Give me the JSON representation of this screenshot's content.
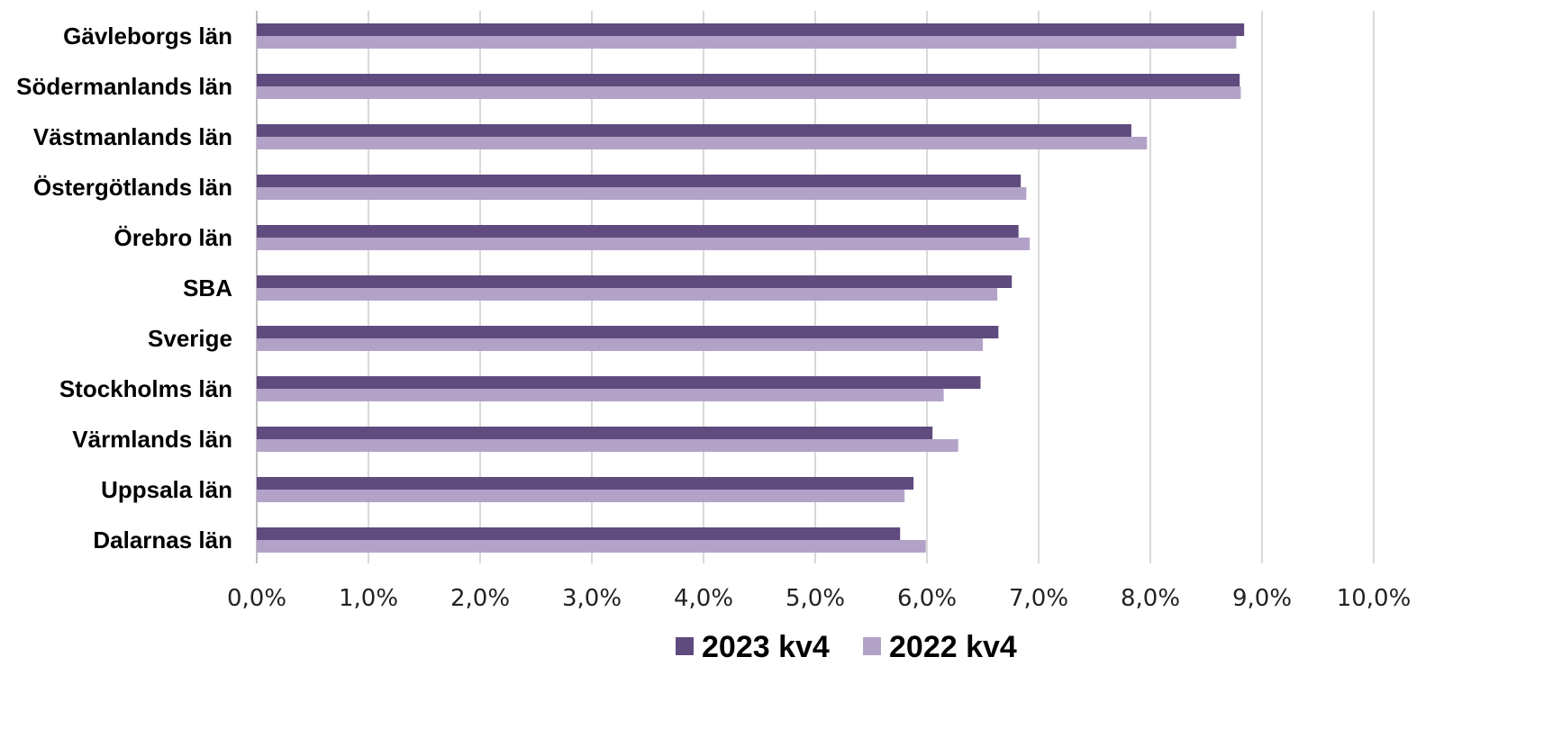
{
  "chart_data": {
    "type": "bar",
    "orientation": "horizontal",
    "categories": [
      "Gävleborgs län",
      "Södermanlands län",
      "Västmanlands län",
      "Östergötlands län",
      "Örebro län",
      "SBA",
      "Sverige",
      "Stockholms län",
      "Värmlands län",
      "Uppsala län",
      "Dalarnas län"
    ],
    "series": [
      {
        "name": "2023 kv4",
        "color": "#5f4b7e",
        "values": [
          8.84,
          8.8,
          7.83,
          6.84,
          6.82,
          6.76,
          6.64,
          6.48,
          6.05,
          5.88,
          5.76
        ]
      },
      {
        "name": "2022 kv4",
        "color": "#b2a2c7",
        "values": [
          8.77,
          8.81,
          7.97,
          6.89,
          6.92,
          6.63,
          6.5,
          6.15,
          6.28,
          5.8,
          5.99
        ]
      }
    ],
    "xlim": [
      0,
      10
    ],
    "xticks": [
      "0,0%",
      "1,0%",
      "2,0%",
      "3,0%",
      "4,0%",
      "5,0%",
      "6,0%",
      "7,0%",
      "8,0%",
      "9,0%",
      "10,0%"
    ],
    "grid": "vertical",
    "legend_position": "bottom",
    "title": "",
    "xlabel": "",
    "ylabel": ""
  }
}
